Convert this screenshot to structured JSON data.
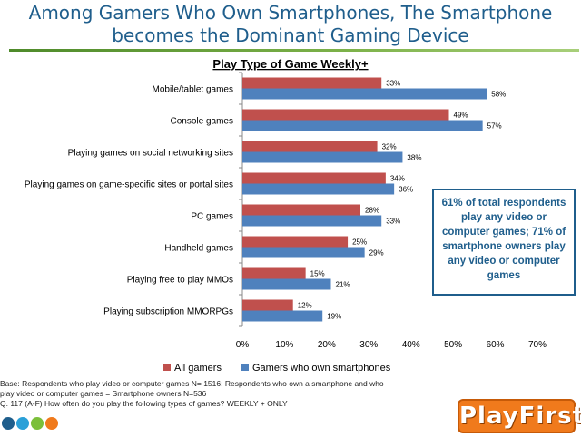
{
  "slide": {
    "title_line1": "Among Gamers Who Own Smartphones, The Smartphone",
    "title_line2": "becomes the Dominant Gaming Device",
    "callout": "61% of total respondents play any video or computer games;  71% of smartphone owners play any video or computer games",
    "footnote_lines": [
      "Base: Respondents who play video or computer games N= 1516; Respondents who own a smartphone and who",
      "play video or computer games  = Smartphone owners N=536",
      "Q. 117 (A-F) How often do you play the following types of games? WEEKLY + ONLY"
    ],
    "logo_text": "PlayFirst",
    "brand_dot_colors": [
      "#1f5e8c",
      "#2aa0d8",
      "#7bbf3a",
      "#f07a1c"
    ]
  },
  "chart_data": {
    "type": "bar",
    "orientation": "horizontal",
    "title": "Play Type of Game Weekly+",
    "categories": [
      "Mobile/tablet games",
      "Console games",
      "Playing games on social networking sites",
      "Playing games on game-specific sites or portal sites",
      "PC games",
      "Handheld games",
      "Playing free to play MMOs",
      "Playing subscription MMORPGs"
    ],
    "series": [
      {
        "name": "All gamers",
        "color": "#c0504d",
        "values": [
          33,
          49,
          32,
          34,
          28,
          25,
          15,
          12
        ]
      },
      {
        "name": "Gamers who own smartphones",
        "color": "#4f81bd",
        "values": [
          58,
          57,
          38,
          36,
          33,
          29,
          21,
          19
        ]
      }
    ],
    "value_suffix": "%",
    "xlim": [
      0,
      70
    ],
    "xticks": [
      "0%",
      "10%",
      "20%",
      "30%",
      "40%",
      "50%",
      "60%",
      "70%"
    ],
    "grid": false,
    "legend": "bottom"
  }
}
